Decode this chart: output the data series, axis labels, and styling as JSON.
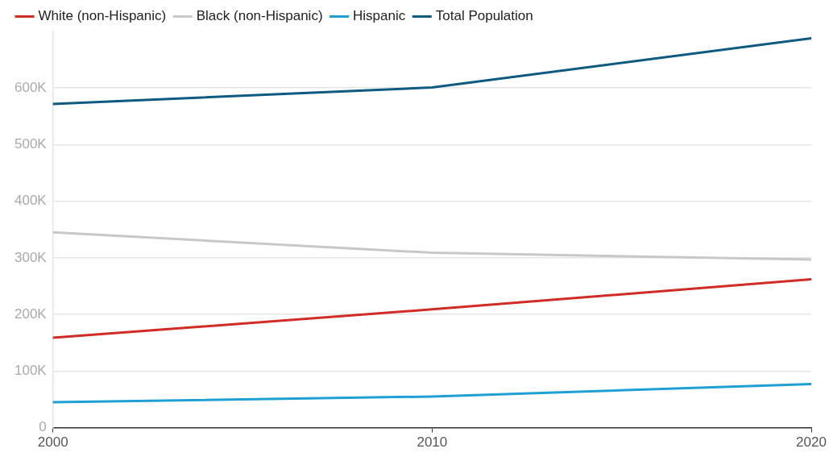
{
  "chart_data": {
    "type": "line",
    "x": [
      2000,
      2010,
      2020
    ],
    "series": [
      {
        "name": "White (non-Hispanic)",
        "color": "#d12b26",
        "values": [
          159000,
          209000,
          262000
        ]
      },
      {
        "name": "Black (non-Hispanic)",
        "color": "#c8c8c8",
        "values": [
          345000,
          309000,
          297000
        ]
      },
      {
        "name": "Hispanic",
        "color": "#1fa0d4",
        "values": [
          45000,
          55000,
          77000
        ]
      },
      {
        "name": "Total Population",
        "color": "#0e5a80",
        "values": [
          572000,
          601000,
          688000
        ]
      }
    ],
    "xlim": [
      2000,
      2020
    ],
    "xticks": [
      2000,
      2010,
      2020
    ],
    "ylim": [
      0,
      700000
    ],
    "yticks": [
      0,
      {
        "value": 100000,
        "label": "100K"
      },
      {
        "value": 200000,
        "label": "200K"
      },
      {
        "value": 300000,
        "label": "300K"
      },
      {
        "value": 400000,
        "label": "400K"
      },
      {
        "value": 500000,
        "label": "500K"
      },
      {
        "value": 600000,
        "label": "600K"
      }
    ],
    "grid": "y",
    "legend": "top left",
    "marker": "none",
    "line_style": "solid"
  }
}
